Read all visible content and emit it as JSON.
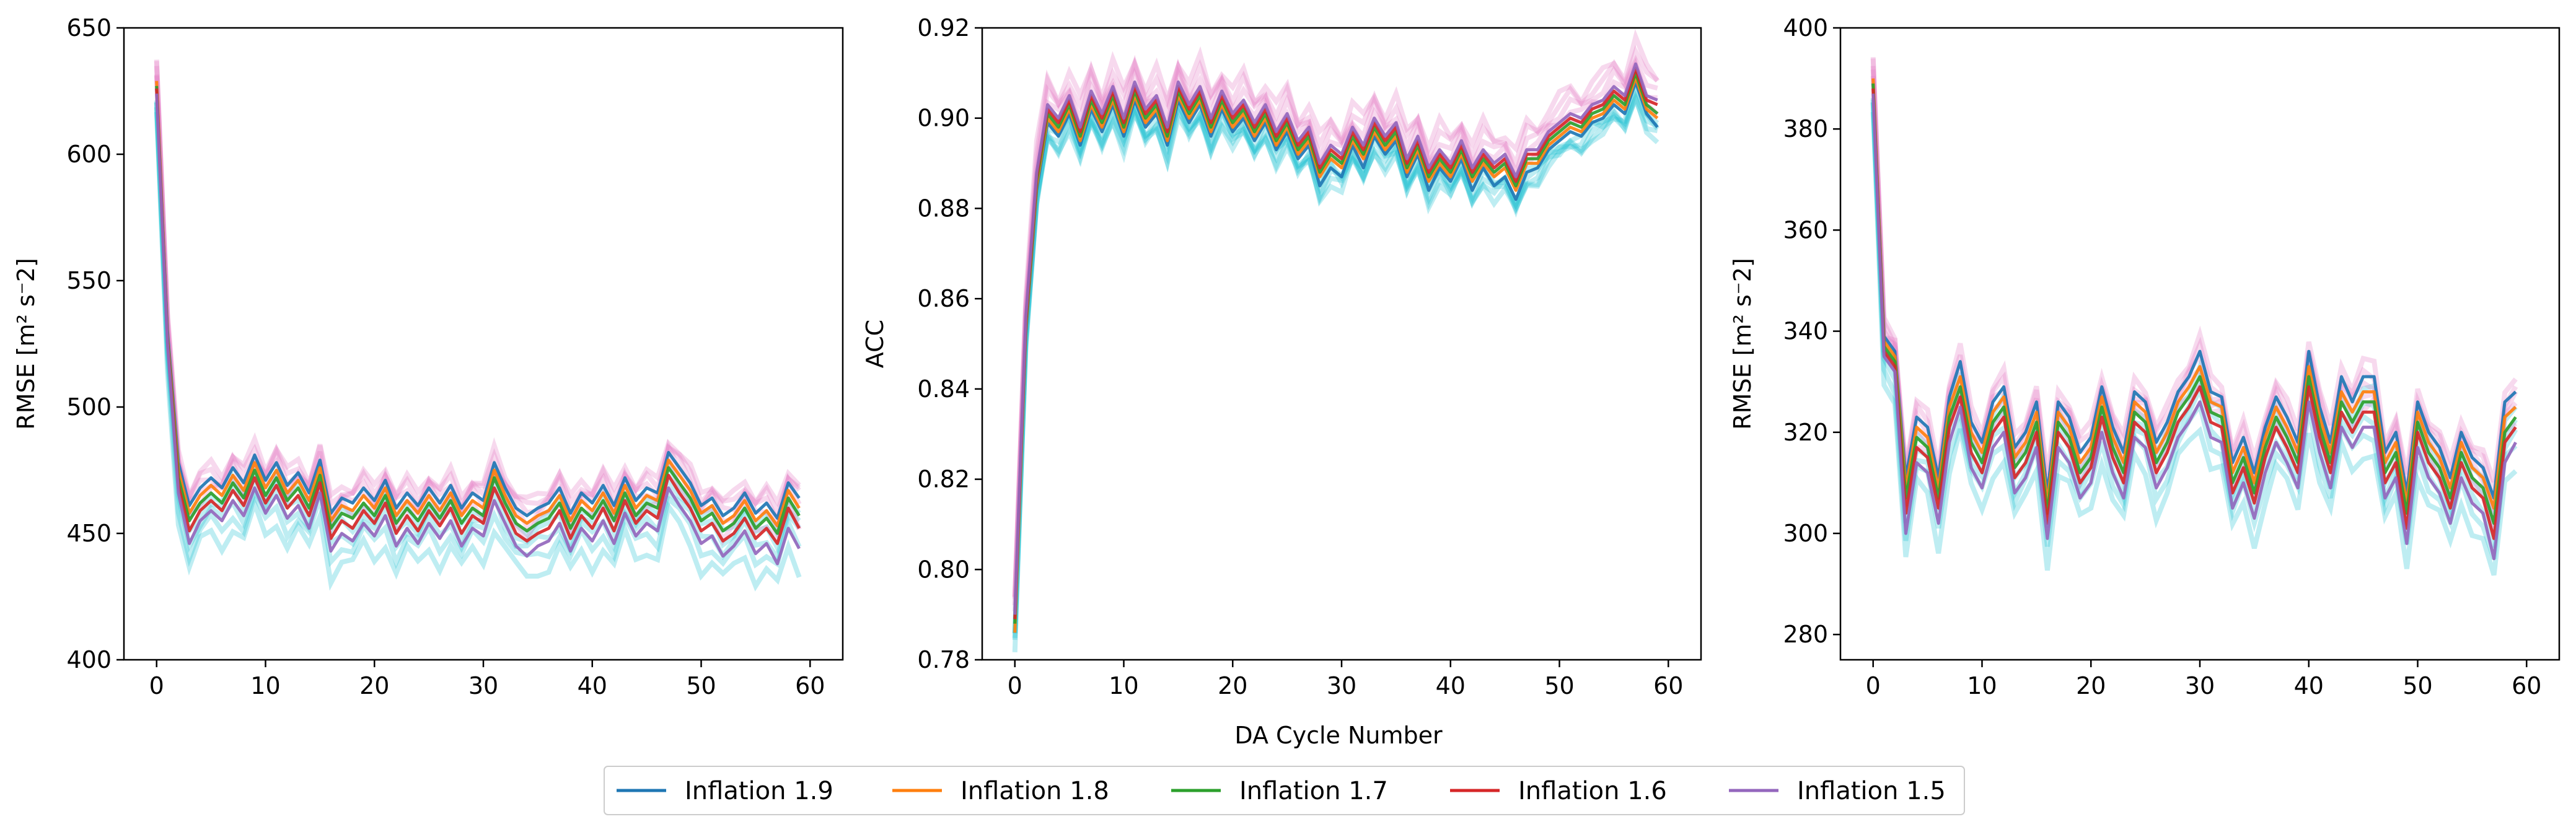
{
  "figure": {
    "shared_xlabel": "DA Cycle Number"
  },
  "legend": {
    "placement": "bottom-center",
    "entries": [
      {
        "label": "Inflation 1.9",
        "color": "#1f77b4"
      },
      {
        "label": "Inflation 1.8",
        "color": "#ff7f0e"
      },
      {
        "label": "Inflation 1.7",
        "color": "#2ca02c"
      },
      {
        "label": "Inflation 1.6",
        "color": "#d62728"
      },
      {
        "label": "Inflation 1.5",
        "color": "#9467bd"
      }
    ]
  },
  "chart_data": [
    {
      "type": "line",
      "ylabel": "RMSE [m² s⁻2]",
      "xlabel": "",
      "xlim": [
        -3,
        63
      ],
      "ylim": [
        400,
        650
      ],
      "xticks": [
        0,
        10,
        20,
        30,
        40,
        50,
        60
      ],
      "yticks": [
        400,
        450,
        500,
        550,
        600,
        650
      ],
      "x_points": 60,
      "band_colors": [
        "#17becf",
        "#e377c2"
      ],
      "series": [
        {
          "name": "Inflation 1.9",
          "color": "#1f77b4",
          "values": [
            626,
            530,
            478,
            461,
            468,
            472,
            468,
            476,
            470,
            481,
            471,
            478,
            469,
            474,
            466,
            479,
            458,
            464,
            462,
            468,
            463,
            471,
            460,
            466,
            461,
            468,
            462,
            469,
            460,
            466,
            463,
            478,
            468,
            460,
            457,
            460,
            462,
            468,
            458,
            466,
            462,
            469,
            461,
            472,
            463,
            468,
            466,
            482,
            476,
            470,
            461,
            464,
            457,
            460,
            466,
            458,
            462,
            456,
            470,
            464
          ]
        },
        {
          "name": "Inflation 1.8",
          "color": "#ff7f0e",
          "values": [
            629,
            528,
            475,
            458,
            465,
            469,
            465,
            473,
            467,
            478,
            468,
            475,
            466,
            471,
            463,
            476,
            455,
            461,
            459,
            465,
            460,
            468,
            457,
            463,
            458,
            465,
            459,
            466,
            457,
            463,
            460,
            475,
            465,
            457,
            454,
            457,
            459,
            465,
            455,
            463,
            459,
            466,
            458,
            469,
            460,
            465,
            463,
            479,
            473,
            467,
            458,
            461,
            454,
            457,
            463,
            455,
            459,
            453,
            467,
            460
          ]
        },
        {
          "name": "Inflation 1.7",
          "color": "#2ca02c",
          "values": [
            627,
            527,
            472,
            455,
            462,
            466,
            462,
            470,
            464,
            475,
            465,
            472,
            463,
            468,
            460,
            473,
            452,
            458,
            456,
            462,
            457,
            465,
            454,
            460,
            455,
            462,
            456,
            463,
            454,
            460,
            457,
            472,
            462,
            454,
            451,
            454,
            456,
            462,
            452,
            460,
            456,
            463,
            455,
            466,
            457,
            462,
            460,
            476,
            470,
            464,
            455,
            458,
            451,
            454,
            460,
            452,
            456,
            450,
            464,
            457
          ]
        },
        {
          "name": "Inflation 1.6",
          "color": "#d62728",
          "values": [
            626,
            526,
            469,
            451,
            459,
            463,
            459,
            467,
            461,
            472,
            462,
            469,
            460,
            465,
            457,
            470,
            448,
            455,
            452,
            459,
            454,
            462,
            450,
            457,
            451,
            459,
            453,
            460,
            450,
            457,
            454,
            468,
            459,
            450,
            447,
            450,
            452,
            459,
            448,
            457,
            452,
            460,
            451,
            463,
            454,
            459,
            456,
            473,
            466,
            460,
            451,
            454,
            447,
            450,
            456,
            448,
            452,
            446,
            460,
            452
          ]
        },
        {
          "name": "Inflation 1.5",
          "color": "#9467bd",
          "values": [
            624,
            525,
            466,
            446,
            455,
            459,
            455,
            463,
            457,
            468,
            458,
            465,
            456,
            461,
            452,
            466,
            443,
            450,
            447,
            454,
            449,
            457,
            445,
            452,
            446,
            454,
            448,
            455,
            445,
            452,
            449,
            463,
            454,
            445,
            441,
            445,
            447,
            454,
            443,
            452,
            447,
            455,
            446,
            458,
            449,
            454,
            451,
            468,
            461,
            455,
            446,
            449,
            441,
            445,
            451,
            442,
            446,
            438,
            452,
            444
          ]
        }
      ]
    },
    {
      "type": "line",
      "ylabel": "ACC",
      "xlabel": "DA Cycle Number",
      "xlim": [
        -3,
        63
      ],
      "ylim": [
        0.78,
        0.92
      ],
      "xticks": [
        0,
        10,
        20,
        30,
        40,
        50,
        60
      ],
      "yticks": [
        0.78,
        0.8,
        0.82,
        0.84,
        0.86,
        0.88,
        0.9,
        0.92
      ],
      "x_points": 60,
      "band_colors": [
        "#17becf",
        "#e377c2"
      ],
      "series": [
        {
          "name": "Inflation 1.9",
          "color": "#1f77b4",
          "values": [
            0.789,
            0.852,
            0.884,
            0.899,
            0.896,
            0.901,
            0.894,
            0.902,
            0.897,
            0.903,
            0.896,
            0.904,
            0.898,
            0.901,
            0.894,
            0.904,
            0.899,
            0.903,
            0.896,
            0.902,
            0.897,
            0.9,
            0.895,
            0.899,
            0.893,
            0.897,
            0.891,
            0.894,
            0.885,
            0.889,
            0.887,
            0.894,
            0.889,
            0.896,
            0.892,
            0.895,
            0.887,
            0.892,
            0.884,
            0.889,
            0.886,
            0.891,
            0.884,
            0.889,
            0.885,
            0.887,
            0.882,
            0.888,
            0.889,
            0.893,
            0.895,
            0.897,
            0.896,
            0.899,
            0.9,
            0.903,
            0.901,
            0.908,
            0.901,
            0.898
          ]
        },
        {
          "name": "Inflation 1.8",
          "color": "#ff7f0e",
          "values": [
            0.786,
            0.853,
            0.885,
            0.9,
            0.897,
            0.902,
            0.895,
            0.903,
            0.898,
            0.904,
            0.897,
            0.905,
            0.899,
            0.902,
            0.895,
            0.905,
            0.9,
            0.904,
            0.897,
            0.903,
            0.898,
            0.901,
            0.896,
            0.9,
            0.894,
            0.898,
            0.892,
            0.895,
            0.887,
            0.891,
            0.889,
            0.895,
            0.891,
            0.897,
            0.893,
            0.896,
            0.888,
            0.893,
            0.886,
            0.89,
            0.887,
            0.892,
            0.886,
            0.89,
            0.887,
            0.889,
            0.884,
            0.89,
            0.89,
            0.894,
            0.896,
            0.898,
            0.897,
            0.9,
            0.901,
            0.904,
            0.902,
            0.909,
            0.902,
            0.9
          ]
        },
        {
          "name": "Inflation 1.7",
          "color": "#2ca02c",
          "values": [
            0.788,
            0.854,
            0.886,
            0.901,
            0.898,
            0.903,
            0.896,
            0.904,
            0.899,
            0.905,
            0.898,
            0.906,
            0.9,
            0.903,
            0.896,
            0.906,
            0.901,
            0.905,
            0.898,
            0.904,
            0.899,
            0.902,
            0.897,
            0.901,
            0.895,
            0.899,
            0.893,
            0.896,
            0.888,
            0.892,
            0.89,
            0.896,
            0.892,
            0.898,
            0.894,
            0.897,
            0.889,
            0.894,
            0.887,
            0.891,
            0.888,
            0.893,
            0.887,
            0.891,
            0.888,
            0.89,
            0.885,
            0.891,
            0.891,
            0.895,
            0.897,
            0.899,
            0.898,
            0.901,
            0.902,
            0.905,
            0.903,
            0.91,
            0.903,
            0.901
          ]
        },
        {
          "name": "Inflation 1.6",
          "color": "#d62728",
          "values": [
            0.789,
            0.855,
            0.887,
            0.902,
            0.899,
            0.904,
            0.897,
            0.905,
            0.9,
            0.906,
            0.899,
            0.907,
            0.901,
            0.904,
            0.897,
            0.907,
            0.902,
            0.906,
            0.899,
            0.905,
            0.9,
            0.903,
            0.898,
            0.902,
            0.896,
            0.9,
            0.894,
            0.897,
            0.889,
            0.893,
            0.891,
            0.897,
            0.893,
            0.899,
            0.895,
            0.898,
            0.89,
            0.895,
            0.888,
            0.892,
            0.889,
            0.894,
            0.888,
            0.892,
            0.889,
            0.891,
            0.886,
            0.892,
            0.892,
            0.896,
            0.898,
            0.9,
            0.899,
            0.902,
            0.903,
            0.906,
            0.904,
            0.911,
            0.904,
            0.903
          ]
        },
        {
          "name": "Inflation 1.5",
          "color": "#9467bd",
          "values": [
            0.79,
            0.856,
            0.888,
            0.903,
            0.9,
            0.905,
            0.898,
            0.906,
            0.901,
            0.907,
            0.9,
            0.908,
            0.902,
            0.905,
            0.898,
            0.908,
            0.903,
            0.907,
            0.9,
            0.906,
            0.901,
            0.904,
            0.899,
            0.903,
            0.897,
            0.901,
            0.895,
            0.898,
            0.89,
            0.894,
            0.892,
            0.898,
            0.894,
            0.9,
            0.896,
            0.899,
            0.891,
            0.896,
            0.889,
            0.893,
            0.89,
            0.895,
            0.889,
            0.893,
            0.89,
            0.892,
            0.887,
            0.893,
            0.893,
            0.897,
            0.899,
            0.901,
            0.9,
            0.903,
            0.904,
            0.907,
            0.905,
            0.912,
            0.905,
            0.904
          ]
        }
      ]
    },
    {
      "type": "line",
      "ylabel": "RMSE [m² s⁻2]",
      "xlabel": "",
      "xlim": [
        -3,
        63
      ],
      "ylim": [
        275,
        400
      ],
      "xticks": [
        0,
        10,
        20,
        30,
        40,
        50,
        60
      ],
      "yticks": [
        280,
        300,
        320,
        340,
        360,
        380,
        400
      ],
      "x_points": 60,
      "band_colors": [
        "#17becf",
        "#e377c2"
      ],
      "series": [
        {
          "name": "Inflation 1.9",
          "color": "#1f77b4",
          "values": [
            389,
            339,
            336,
            311,
            323,
            321,
            311,
            327,
            334,
            322,
            318,
            326,
            329,
            317,
            320,
            326,
            308,
            326,
            323,
            316,
            319,
            329,
            321,
            316,
            328,
            326,
            318,
            322,
            328,
            331,
            336,
            328,
            327,
            314,
            319,
            312,
            321,
            327,
            323,
            318,
            336,
            325,
            318,
            331,
            326,
            331,
            331,
            316,
            320,
            308,
            326,
            320,
            317,
            311,
            320,
            315,
            313,
            307,
            326,
            328
          ]
        },
        {
          "name": "Inflation 1.8",
          "color": "#ff7f0e",
          "values": [
            390,
            338,
            335,
            309,
            321,
            319,
            309,
            325,
            331,
            320,
            316,
            324,
            327,
            315,
            318,
            324,
            306,
            324,
            321,
            314,
            317,
            327,
            319,
            314,
            326,
            324,
            316,
            320,
            326,
            329,
            333,
            326,
            325,
            312,
            317,
            310,
            319,
            325,
            321,
            316,
            333,
            323,
            316,
            328,
            324,
            328,
            328,
            314,
            318,
            306,
            324,
            318,
            315,
            309,
            318,
            313,
            311,
            305,
            323,
            325
          ]
        },
        {
          "name": "Inflation 1.7",
          "color": "#2ca02c",
          "values": [
            389,
            337,
            334,
            307,
            319,
            317,
            307,
            323,
            329,
            318,
            314,
            322,
            325,
            313,
            316,
            322,
            304,
            322,
            319,
            312,
            315,
            325,
            317,
            312,
            324,
            322,
            314,
            318,
            324,
            327,
            331,
            324,
            323,
            310,
            315,
            308,
            317,
            323,
            319,
            314,
            331,
            321,
            314,
            326,
            322,
            326,
            326,
            312,
            316,
            304,
            322,
            316,
            313,
            307,
            316,
            311,
            309,
            302,
            320,
            323
          ]
        },
        {
          "name": "Inflation 1.6",
          "color": "#d62728",
          "values": [
            388,
            336,
            333,
            304,
            317,
            315,
            305,
            321,
            327,
            316,
            312,
            320,
            323,
            311,
            314,
            320,
            302,
            320,
            317,
            310,
            313,
            323,
            315,
            310,
            322,
            320,
            312,
            316,
            322,
            325,
            329,
            322,
            321,
            308,
            313,
            306,
            315,
            321,
            317,
            312,
            329,
            319,
            312,
            324,
            320,
            324,
            324,
            310,
            314,
            301,
            320,
            314,
            311,
            305,
            314,
            309,
            307,
            299,
            318,
            321
          ]
        },
        {
          "name": "Inflation 1.5",
          "color": "#9467bd",
          "values": [
            387,
            335,
            332,
            300,
            314,
            312,
            302,
            318,
            325,
            313,
            309,
            317,
            320,
            308,
            311,
            317,
            299,
            317,
            314,
            307,
            310,
            320,
            312,
            307,
            319,
            317,
            309,
            313,
            319,
            322,
            326,
            319,
            318,
            305,
            310,
            303,
            312,
            318,
            314,
            309,
            326,
            316,
            309,
            321,
            317,
            321,
            321,
            307,
            311,
            298,
            317,
            311,
            308,
            302,
            311,
            306,
            304,
            295,
            314,
            318
          ]
        }
      ]
    }
  ]
}
